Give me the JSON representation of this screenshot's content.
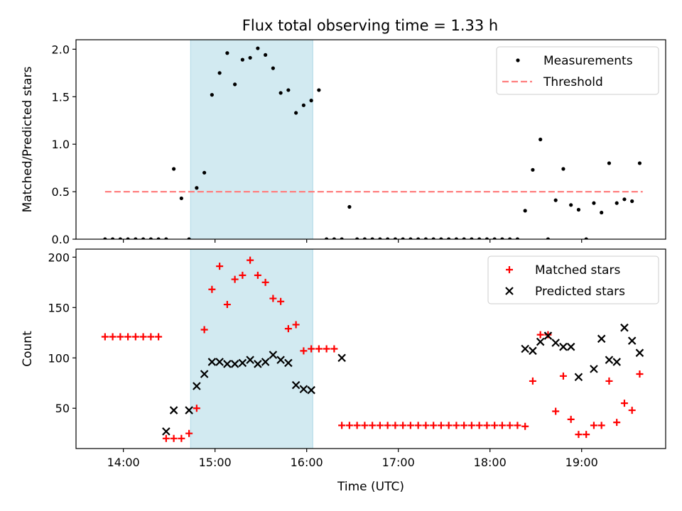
{
  "title": "Flux total observing time = 1.33 h",
  "colors": {
    "measurement": "#000000",
    "threshold": "#ff7f7f",
    "matched": "#ff0000",
    "predicted": "#000000",
    "shade": "#add8e6"
  },
  "chart_data": [
    {
      "type": "scatter",
      "ylabel": "Matched/Predicted stars",
      "xlabel": "",
      "xlim": [
        "13:29",
        "19:55"
      ],
      "ylim": [
        0,
        2.1
      ],
      "yticks": [
        0.0,
        0.5,
        1.0,
        1.5,
        2.0
      ],
      "ytick_labels": [
        "0.0",
        "0.5",
        "1.0",
        "1.5",
        "2.0"
      ],
      "legend": {
        "placement": "top-right",
        "entries": [
          "Measurements",
          "Threshold"
        ]
      },
      "shaded_region": [
        "14:44",
        "16:04"
      ],
      "threshold": {
        "name": "Threshold",
        "value": 0.5,
        "x_start": "13:48",
        "x_end": "19:40"
      },
      "series": [
        {
          "name": "Measurements",
          "x": [
            "13:48",
            "13:53",
            "13:58",
            "14:03",
            "14:08",
            "14:13",
            "14:18",
            "14:23",
            "14:28",
            "14:33",
            "14:38",
            "14:43",
            "14:48",
            "14:53",
            "14:58",
            "15:03",
            "15:08",
            "15:13",
            "15:18",
            "15:23",
            "15:28",
            "15:33",
            "15:38",
            "15:43",
            "15:48",
            "15:53",
            "15:58",
            "16:03",
            "16:08",
            "16:13",
            "16:18",
            "16:23",
            "16:28",
            "16:33",
            "16:38",
            "16:43",
            "16:48",
            "16:53",
            "16:58",
            "17:03",
            "17:08",
            "17:13",
            "17:18",
            "17:23",
            "17:28",
            "17:33",
            "17:38",
            "17:43",
            "17:48",
            "17:53",
            "17:58",
            "18:03",
            "18:08",
            "18:13",
            "18:18",
            "18:23",
            "18:28",
            "18:33",
            "18:38",
            "18:43",
            "18:48",
            "18:53",
            "18:58",
            "19:03",
            "19:08",
            "19:13",
            "19:18",
            "19:23",
            "19:28",
            "19:33",
            "19:38"
          ],
          "y": [
            0,
            0,
            0,
            0,
            0,
            0,
            0,
            0,
            0,
            0.74,
            0.43,
            0,
            0.54,
            0.7,
            1.52,
            1.75,
            1.96,
            1.63,
            1.89,
            1.91,
            2.01,
            1.94,
            1.8,
            1.54,
            1.57,
            1.33,
            1.41,
            1.46,
            1.57,
            0,
            0,
            0,
            0.34,
            0,
            0,
            0,
            0,
            0,
            0,
            0,
            0,
            0,
            0,
            0,
            0,
            0,
            0,
            0,
            0,
            0,
            0,
            0,
            0,
            0,
            0,
            0.3,
            0.73,
            1.05,
            0,
            0.41,
            0.74,
            0.36,
            0.31,
            0,
            0.38,
            0.28,
            0.8,
            0.38,
            0.42,
            0.4,
            0.8
          ]
        }
      ]
    },
    {
      "type": "scatter",
      "ylabel": "Count",
      "xlabel": "Time (UTC)",
      "xlim": [
        "13:29",
        "19:55"
      ],
      "ylim": [
        10,
        208
      ],
      "yticks": [
        50,
        100,
        150,
        200
      ],
      "ytick_labels": [
        "50",
        "100",
        "150",
        "200"
      ],
      "xticks": [
        "14:00",
        "15:00",
        "16:00",
        "17:00",
        "18:00",
        "19:00"
      ],
      "xtick_labels": [
        "14:00",
        "15:00",
        "16:00",
        "17:00",
        "18:00",
        "19:00"
      ],
      "legend": {
        "placement": "top-right",
        "entries": [
          "Matched stars",
          "Predicted stars"
        ]
      },
      "shaded_region": [
        "14:44",
        "16:04"
      ],
      "series": [
        {
          "name": "Matched stars",
          "marker": "+",
          "x": [
            "13:48",
            "13:53",
            "13:58",
            "14:03",
            "14:08",
            "14:13",
            "14:18",
            "14:23",
            "14:28",
            "14:33",
            "14:38",
            "14:43",
            "14:48",
            "14:53",
            "14:58",
            "15:03",
            "15:08",
            "15:13",
            "15:18",
            "15:23",
            "15:28",
            "15:33",
            "15:38",
            "15:43",
            "15:48",
            "15:53",
            "15:58",
            "16:03",
            "16:08",
            "16:13",
            "16:18",
            "16:23",
            "16:28",
            "16:33",
            "16:38",
            "16:43",
            "16:48",
            "16:53",
            "16:58",
            "17:03",
            "17:08",
            "17:13",
            "17:18",
            "17:23",
            "17:28",
            "17:33",
            "17:38",
            "17:43",
            "17:48",
            "17:53",
            "17:58",
            "18:03",
            "18:08",
            "18:13",
            "18:18",
            "18:23",
            "18:28",
            "18:33",
            "18:38",
            "18:43",
            "18:48",
            "18:53",
            "18:58",
            "19:03",
            "19:08",
            "19:13",
            "19:18",
            "19:23",
            "19:28",
            "19:33",
            "19:38"
          ],
          "y": [
            121,
            121,
            121,
            121,
            121,
            121,
            121,
            121,
            20,
            20,
            20,
            25,
            50,
            128,
            168,
            191,
            153,
            178,
            182,
            197,
            182,
            175,
            159,
            156,
            129,
            133,
            107,
            109,
            109,
            109,
            109,
            33,
            33,
            33,
            33,
            33,
            33,
            33,
            33,
            33,
            33,
            33,
            33,
            33,
            33,
            33,
            33,
            33,
            33,
            33,
            33,
            33,
            33,
            33,
            33,
            32,
            77,
            123,
            123,
            47,
            82,
            39,
            24,
            24,
            33,
            33,
            77,
            36,
            55,
            48,
            84
          ]
        },
        {
          "name": "Predicted stars",
          "marker": "x",
          "x": [
            "14:28",
            "14:33",
            "14:43",
            "14:48",
            "14:53",
            "14:58",
            "15:03",
            "15:08",
            "15:13",
            "15:18",
            "15:23",
            "15:28",
            "15:33",
            "15:38",
            "15:43",
            "15:48",
            "15:53",
            "15:58",
            "16:03",
            "16:23",
            "18:23",
            "18:28",
            "18:33",
            "18:38",
            "18:43",
            "18:48",
            "18:53",
            "18:58",
            "19:08",
            "19:13",
            "19:18",
            "19:23",
            "19:28",
            "19:33",
            "19:38"
          ],
          "y": [
            27,
            48,
            48,
            72,
            84,
            96,
            96,
            94,
            94,
            95,
            98,
            94,
            96,
            103,
            98,
            95,
            73,
            69,
            68,
            100,
            109,
            107,
            116,
            122,
            115,
            111,
            111,
            81,
            89,
            119,
            98,
            96,
            130,
            117,
            105
          ]
        }
      ]
    }
  ]
}
